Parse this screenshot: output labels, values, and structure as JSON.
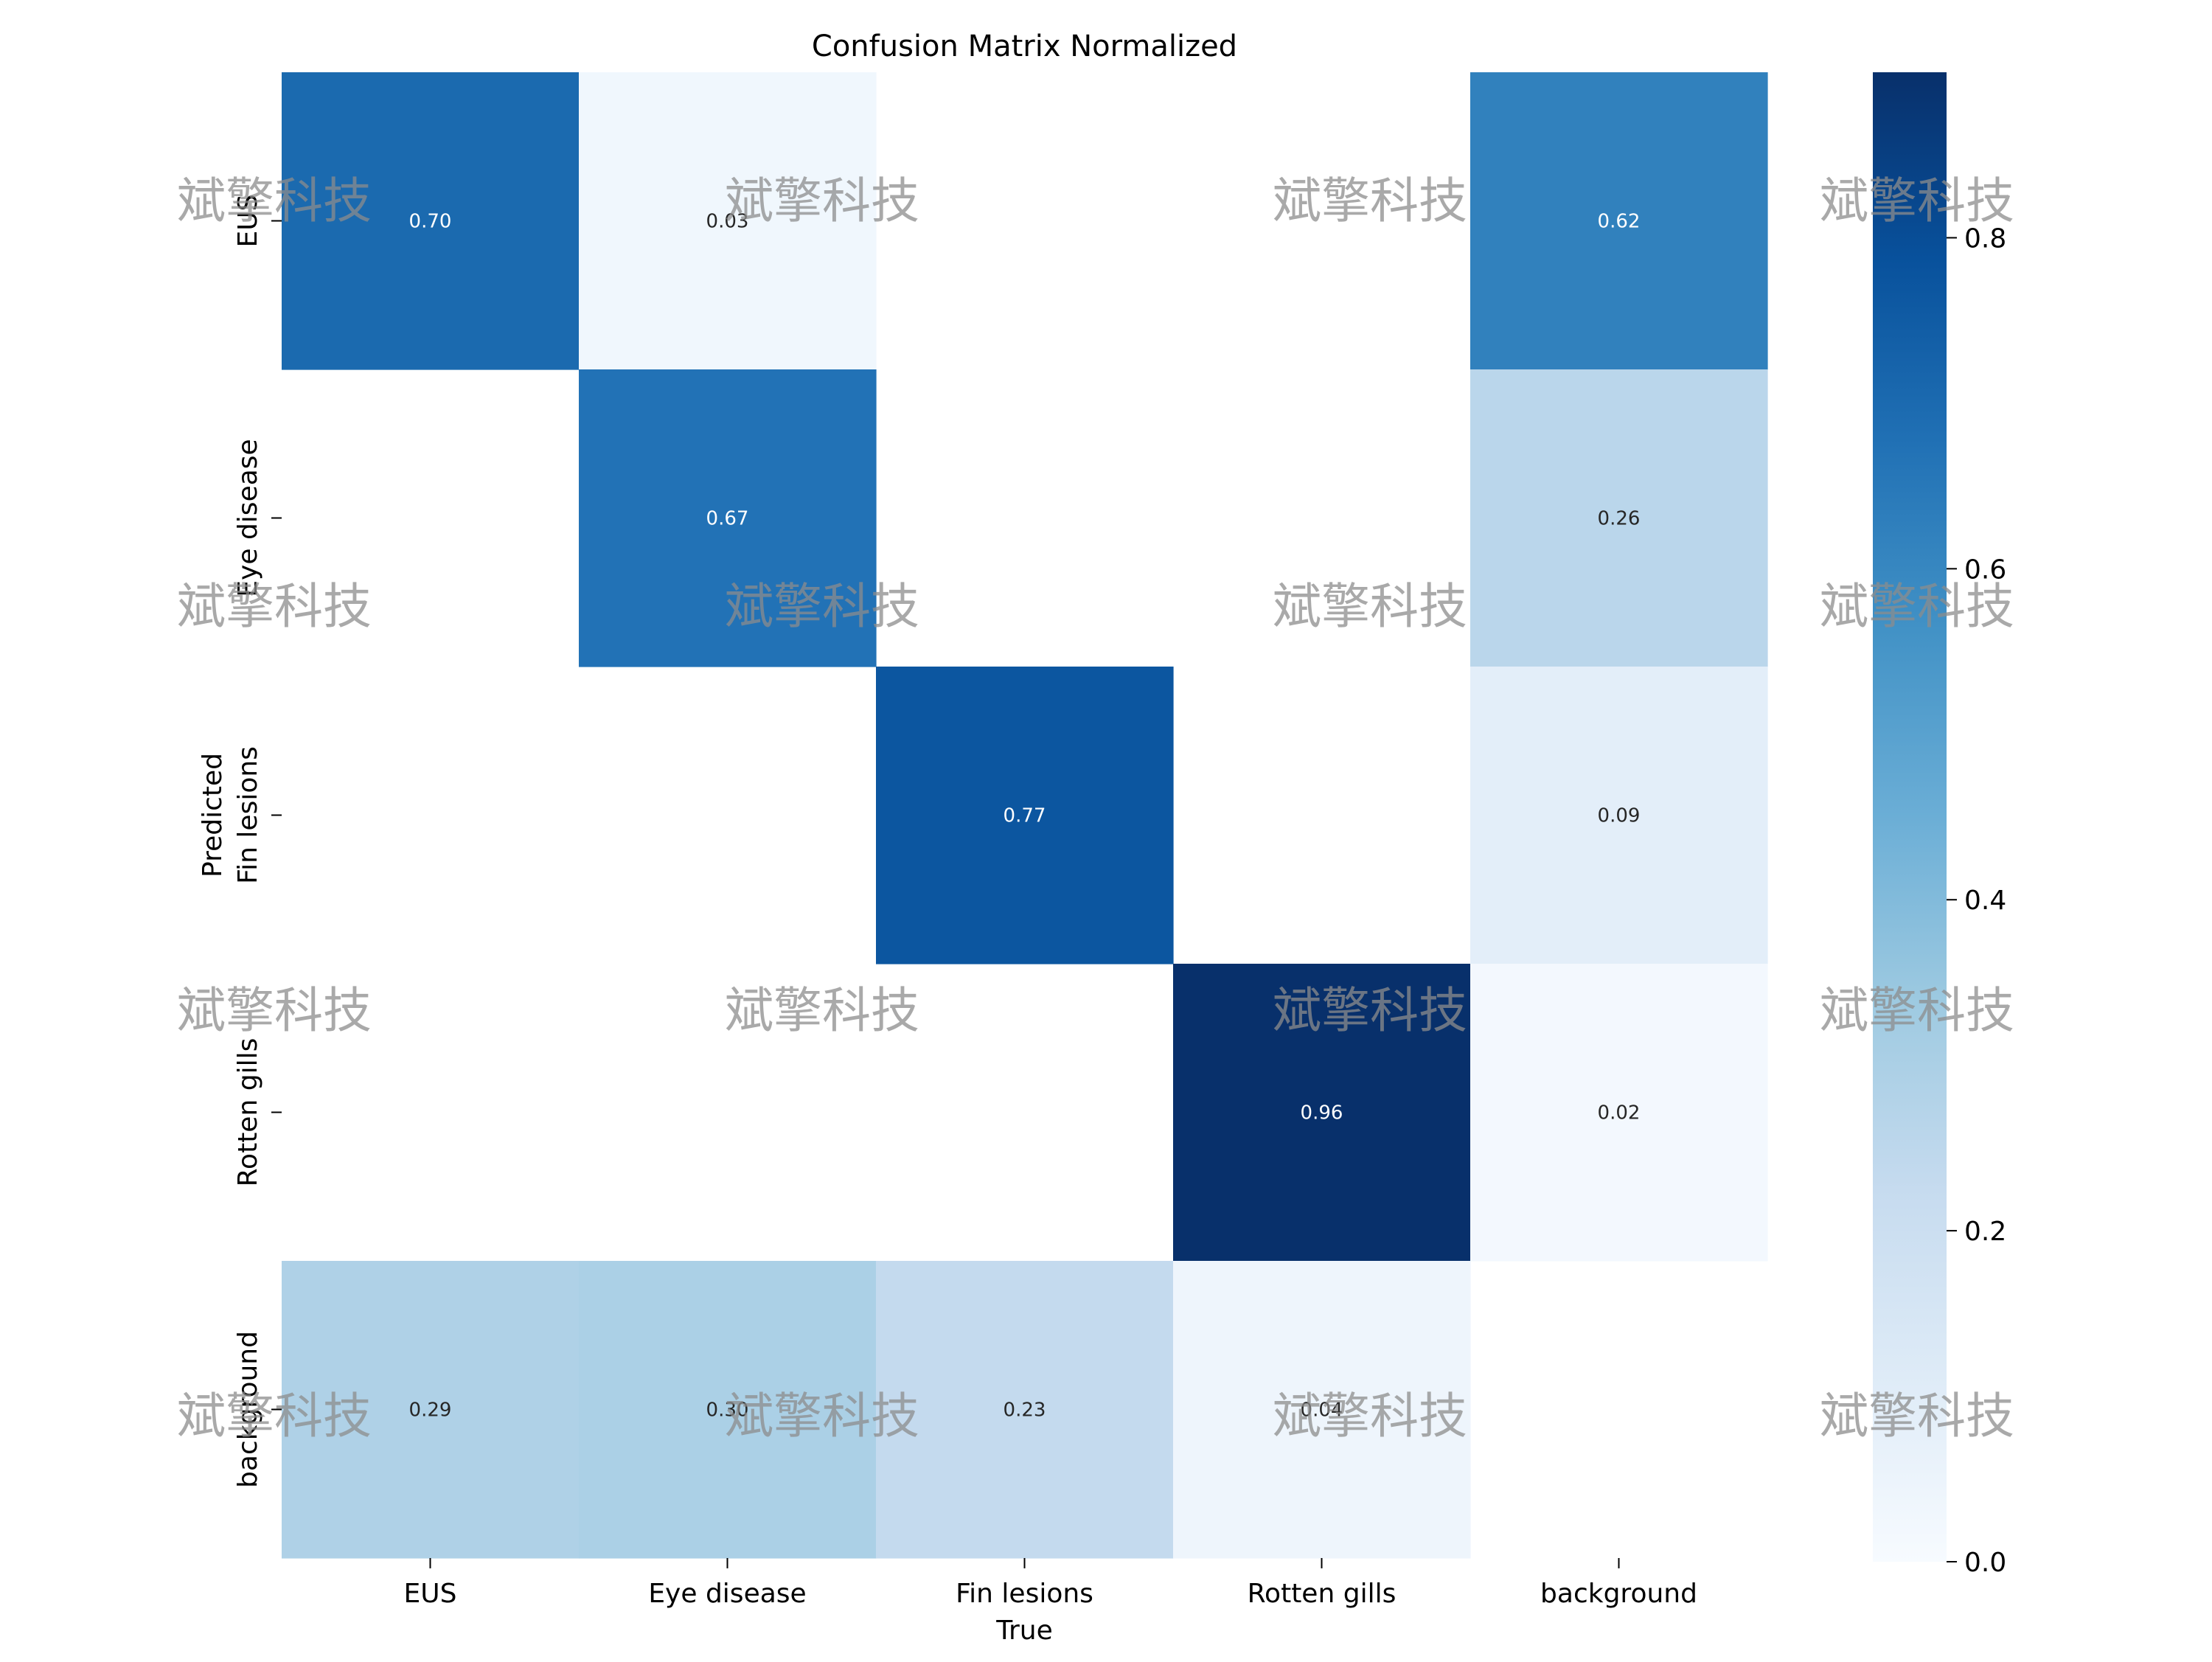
{
  "chart_data": {
    "type": "heatmap",
    "title": "Confusion Matrix Normalized",
    "xlabel": "True",
    "ylabel": "Predicted",
    "x_categories": [
      "EUS",
      "Eye disease",
      "Fin lesions",
      "Rotten gills",
      "background"
    ],
    "y_categories": [
      "EUS",
      "Eye disease",
      "Fin lesions",
      "Rotten gills",
      "background"
    ],
    "values": [
      [
        0.7,
        0.03,
        null,
        null,
        0.62
      ],
      [
        null,
        0.67,
        null,
        null,
        0.26
      ],
      [
        null,
        null,
        0.77,
        null,
        0.09
      ],
      [
        null,
        null,
        null,
        0.96,
        0.02
      ],
      [
        0.29,
        0.3,
        0.23,
        0.04,
        null
      ]
    ],
    "colormap": "Blues",
    "vmin": 0.0,
    "vmax": 0.9,
    "colorbar_ticks": [
      0.0,
      0.2,
      0.4,
      0.6,
      0.8
    ],
    "colorbar_tick_labels": [
      "0.0",
      "0.2",
      "0.4",
      "0.6",
      "0.8"
    ]
  },
  "watermark": {
    "text": "斌擎科技",
    "color": "#8c8c8c"
  }
}
